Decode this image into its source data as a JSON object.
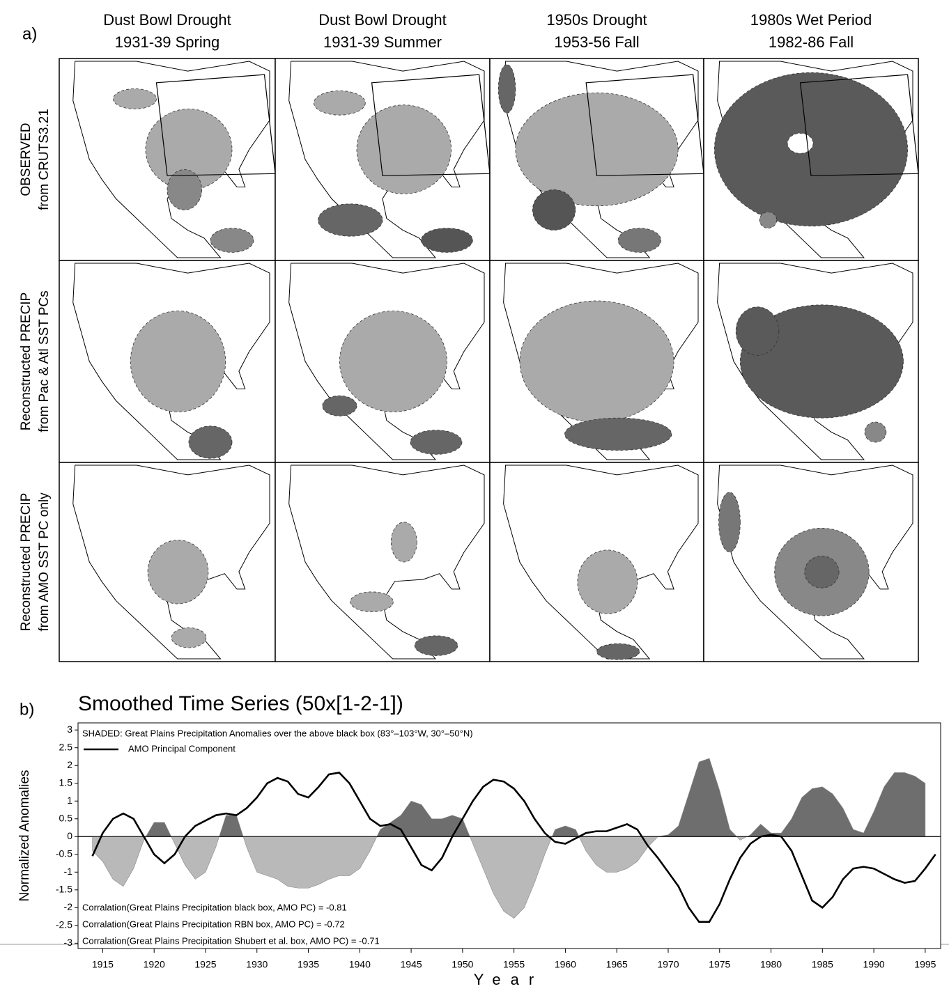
{
  "panel_a": {
    "label": "a)",
    "columns": [
      {
        "line1": "Dust Bowl Drought",
        "line2": "1931-39 Spring"
      },
      {
        "line1": "Dust Bowl Drought",
        "line2": "1931-39 Summer"
      },
      {
        "line1": "1950s Drought",
        "line2": "1953-56 Fall"
      },
      {
        "line1": "1980s Wet Period",
        "line2": "1982-86 Fall"
      }
    ],
    "rows": [
      {
        "line1": "OBSERVED",
        "line2": "from CRUTS3.21"
      },
      {
        "line1": "Reconstructed PRECIP",
        "line2": "from Pac & Atl SST PCs"
      },
      {
        "line1": "Reconstructed PRECIP",
        "line2": "from AMO SST PC only"
      }
    ]
  },
  "chart_data": {
    "type": "line",
    "label": "b)",
    "title": "Smoothed Time Series (50x[1-2-1])",
    "x_label": "Year",
    "y_label": "Normalized Anomalies",
    "x": [
      1914,
      1915,
      1916,
      1917,
      1918,
      1919,
      1920,
      1921,
      1922,
      1923,
      1924,
      1925,
      1926,
      1927,
      1928,
      1929,
      1930,
      1931,
      1932,
      1933,
      1934,
      1935,
      1936,
      1937,
      1938,
      1939,
      1940,
      1941,
      1942,
      1943,
      1944,
      1945,
      1946,
      1947,
      1948,
      1949,
      1950,
      1951,
      1952,
      1953,
      1954,
      1955,
      1956,
      1957,
      1958,
      1959,
      1960,
      1961,
      1962,
      1963,
      1964,
      1965,
      1966,
      1967,
      1968,
      1969,
      1970,
      1971,
      1972,
      1973,
      1974,
      1975,
      1976,
      1977,
      1978,
      1979,
      1980,
      1981,
      1982,
      1983,
      1984,
      1985,
      1986,
      1987,
      1988,
      1989,
      1990,
      1991,
      1992,
      1993,
      1994,
      1995,
      1996
    ],
    "series": [
      {
        "name": "SHADED: Great Plains Precipitation Anomalies over the above black box (83°–103°W, 30°–50°N)",
        "style": "area",
        "color": "#6e6e6e",
        "negative_color": "#b9b9b9",
        "values": [
          -0.4,
          -0.7,
          -1.2,
          -1.4,
          -0.9,
          -0.1,
          0.4,
          0.4,
          -0.2,
          -0.8,
          -1.2,
          -1.0,
          -0.3,
          0.6,
          0.6,
          -0.3,
          -1.0,
          -1.1,
          -1.2,
          -1.4,
          -1.45,
          -1.45,
          -1.35,
          -1.2,
          -1.1,
          -1.1,
          -0.9,
          -0.4,
          0.2,
          0.4,
          0.6,
          1.0,
          0.9,
          0.5,
          0.5,
          0.6,
          0.5,
          -0.2,
          -0.9,
          -1.6,
          -2.1,
          -2.3,
          -2.0,
          -1.3,
          -0.5,
          0.2,
          0.3,
          0.2,
          -0.4,
          -0.8,
          -1.0,
          -1.0,
          -0.9,
          -0.7,
          -0.3,
          0.0,
          0.05,
          0.3,
          1.2,
          2.1,
          2.2,
          1.3,
          0.2,
          -0.1,
          0.05,
          0.35,
          0.1,
          0.1,
          0.5,
          1.1,
          1.35,
          1.4,
          1.2,
          0.8,
          0.2,
          0.1,
          0.7,
          1.4,
          1.8,
          1.8,
          1.7,
          1.5,
          null
        ]
      },
      {
        "name": "AMO Principal Component",
        "style": "line",
        "color": "#000000",
        "values": [
          -0.55,
          0.1,
          0.5,
          0.65,
          0.5,
          0.0,
          -0.5,
          -0.75,
          -0.5,
          0.0,
          0.3,
          0.45,
          0.6,
          0.65,
          0.6,
          0.8,
          1.1,
          1.5,
          1.65,
          1.55,
          1.2,
          1.1,
          1.4,
          1.75,
          1.8,
          1.5,
          1.0,
          0.5,
          0.3,
          0.35,
          0.2,
          -0.3,
          -0.8,
          -0.95,
          -0.6,
          0.0,
          0.5,
          1.0,
          1.4,
          1.6,
          1.55,
          1.35,
          1.0,
          0.5,
          0.1,
          -0.15,
          -0.2,
          -0.05,
          0.1,
          0.15,
          0.15,
          0.25,
          0.35,
          0.2,
          -0.25,
          -0.6,
          -1.0,
          -1.4,
          -2.0,
          -2.4,
          -2.4,
          -1.9,
          -1.2,
          -0.6,
          -0.2,
          0.0,
          0.05,
          0.0,
          -0.4,
          -1.1,
          -1.8,
          -2.0,
          -1.7,
          -1.2,
          -0.9,
          -0.85,
          -0.9,
          -1.05,
          -1.2,
          -1.3,
          -1.25,
          -0.9,
          -0.5
        ]
      }
    ],
    "annotations": [
      "Corralation(Great Plains Precipitation black box, AMO PC) = -0.81",
      "Corralation(Great Plains Precipitation RBN box, AMO PC) = -0.72",
      "Corralation(Great Plains Precipitation Shubert et al. box, AMO PC) = -0.71"
    ],
    "xlim": [
      1912.6,
      1996.5
    ],
    "xticks": [
      1915,
      1920,
      1925,
      1930,
      1935,
      1940,
      1945,
      1950,
      1955,
      1960,
      1965,
      1970,
      1975,
      1980,
      1985,
      1990,
      1995
    ],
    "ylim": [
      -3.15,
      3.2
    ],
    "yticks": [
      -3,
      -2.5,
      -2,
      -1.5,
      -1,
      -0.5,
      0,
      0.5,
      1,
      1.5,
      2,
      2.5,
      3
    ]
  }
}
